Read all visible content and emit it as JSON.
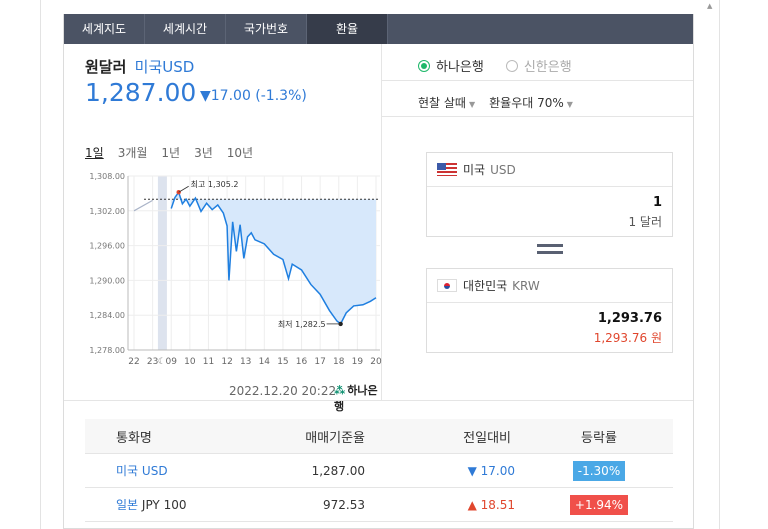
{
  "tabs": [
    "세계지도",
    "세계시간",
    "국가번호",
    "환율"
  ],
  "title": {
    "main": "원달러",
    "sub": "미국USD"
  },
  "price": "1,287.00",
  "change": "▼17.00 (-1.3%)",
  "periods": [
    "1일",
    "3개월",
    "1년",
    "3년",
    "10년"
  ],
  "chart_data": {
    "type": "line",
    "y_ticks": [
      "1,308.00",
      "1,302.00",
      "1,296.00",
      "1,290.00",
      "1,284.00",
      "1,278.00"
    ],
    "x_ticks": [
      "22",
      "23",
      "09",
      "10",
      "11",
      "12",
      "13",
      "14",
      "15",
      "16",
      "17",
      "18",
      "19",
      "20"
    ],
    "ylim": [
      1278,
      1308
    ],
    "max_label": "최고 1,305.2",
    "min_label": "최저 1,282.5",
    "reference_value": 1304.0,
    "prev_series": [
      [
        22,
        1302.0
      ],
      [
        23,
        1303.8
      ]
    ],
    "series": [
      [
        9.0,
        1302.4
      ],
      [
        9.2,
        1304.3
      ],
      [
        9.4,
        1305.2
      ],
      [
        9.6,
        1303.2
      ],
      [
        9.8,
        1304.0
      ],
      [
        10.0,
        1302.8
      ],
      [
        10.3,
        1304.2
      ],
      [
        10.6,
        1301.9
      ],
      [
        10.9,
        1303.3
      ],
      [
        11.2,
        1302.2
      ],
      [
        11.5,
        1303.0
      ],
      [
        11.8,
        1301.6
      ],
      [
        12.0,
        1299.4
      ],
      [
        12.1,
        1290.0
      ],
      [
        12.3,
        1300.1
      ],
      [
        12.5,
        1295.0
      ],
      [
        12.7,
        1299.6
      ],
      [
        12.9,
        1293.8
      ],
      [
        13.1,
        1297.5
      ],
      [
        13.3,
        1298.2
      ],
      [
        13.5,
        1297.0
      ],
      [
        14.0,
        1296.3
      ],
      [
        14.5,
        1294.5
      ],
      [
        15.0,
        1293.6
      ],
      [
        15.3,
        1290.3
      ],
      [
        15.5,
        1292.8
      ],
      [
        16.0,
        1291.8
      ],
      [
        16.5,
        1289.3
      ],
      [
        17.0,
        1287.6
      ],
      [
        17.5,
        1284.8
      ],
      [
        17.9,
        1283.0
      ],
      [
        18.1,
        1282.5
      ],
      [
        18.4,
        1284.4
      ],
      [
        18.8,
        1285.6
      ],
      [
        19.3,
        1285.8
      ],
      [
        19.7,
        1286.4
      ],
      [
        20.0,
        1287.0
      ]
    ],
    "timestamp": "2022.12.20 20:22",
    "bank_logo": "하나은행"
  },
  "bank_options": [
    {
      "label": "하나은행",
      "selected": true
    },
    {
      "label": "신한은행",
      "selected": false
    }
  ],
  "cash_option": "현찰 살때",
  "rate_pref": "환율우대 70%",
  "from": {
    "country": "미국",
    "code": "USD",
    "value": "1",
    "unit": "1 달러"
  },
  "to": {
    "country": "대한민국",
    "code": "KRW",
    "value": "1,293.76",
    "unit": "1,293.76 원"
  },
  "table": {
    "headers": [
      "통화명",
      "매매기준율",
      "전일대비",
      "등락률"
    ],
    "rows": [
      {
        "country": "미국",
        "code": "USD",
        "rate": "1,287.00",
        "diff": "▼ 17.00",
        "pct": "-1.30%",
        "dir": "down"
      },
      {
        "country": "일본",
        "code": "JPY 100",
        "rate": "972.53",
        "diff": "▲ 18.51",
        "pct": "+1.94%",
        "dir": "up"
      }
    ]
  },
  "colors": {
    "accent": "#2f7ad6",
    "down": "#2f7ad6",
    "up": "#e0462d",
    "tabbar": "#4b5364"
  }
}
